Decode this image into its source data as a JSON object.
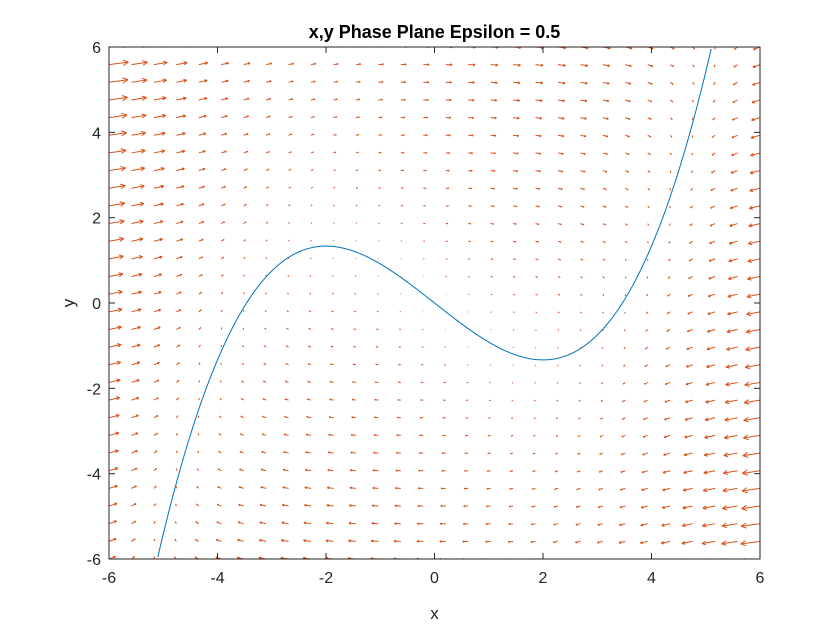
{
  "chart_data": {
    "type": "quiver",
    "title": "x,y Phase Plane Epsilon = 0.5",
    "xlabel": "x",
    "ylabel": "y",
    "xlim": [
      -6,
      6
    ],
    "ylim": [
      -6,
      6
    ],
    "x_ticks": [
      -6,
      -4,
      -2,
      0,
      2,
      4,
      6
    ],
    "y_ticks": [
      -6,
      -4,
      -2,
      0,
      2,
      4,
      6
    ],
    "x_tick_labels": [
      "-6",
      "-4",
      "-2",
      "0",
      "2",
      "4",
      "6"
    ],
    "y_tick_labels": [
      "-6",
      "-4",
      "-2",
      "0",
      "2",
      "4",
      "6"
    ],
    "grid": false,
    "box": true,
    "series": [
      {
        "type": "line",
        "expression": "y = x^3/12 - x",
        "x_range": [
          -5.1,
          5.1
        ],
        "color": "#0072BD"
      },
      {
        "type": "vector_field",
        "epsilon": 0.5,
        "equations": [
          "dx/dt = (y - (x^3/12 - x)) / epsilon",
          "dy/dt = -x"
        ],
        "x_range": [
          -6,
          6
        ],
        "y_range": [
          -6,
          6
        ],
        "samples_x": 30,
        "samples_y": 30,
        "color": "#D95319"
      }
    ]
  }
}
